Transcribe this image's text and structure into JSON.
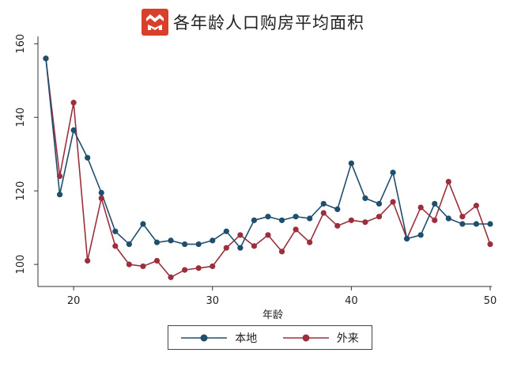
{
  "title": "各年龄人口购房平均面积",
  "colors": {
    "local": "#1f4e6e",
    "migrant": "#9b2f3e",
    "logo_bg": "#d9402b"
  },
  "chart_data": {
    "type": "line",
    "title": "各年龄人口购房平均面积",
    "xlabel": "年龄",
    "ylabel": "",
    "xlim": [
      18,
      50
    ],
    "ylim": [
      94,
      162
    ],
    "xticks": [
      "20",
      "30",
      "40",
      "50"
    ],
    "yticks": [
      "100",
      "120",
      "140",
      "160"
    ],
    "grid": false,
    "legend": "bottom",
    "x": [
      18,
      19,
      20,
      21,
      22,
      23,
      24,
      25,
      26,
      27,
      28,
      29,
      30,
      31,
      32,
      33,
      34,
      35,
      36,
      37,
      38,
      39,
      40,
      41,
      42,
      43,
      44,
      45,
      46,
      47,
      48,
      49,
      50
    ],
    "series": [
      {
        "name": "本地",
        "color": "#1f4e6e",
        "values": [
          156,
          119,
          136.5,
          129,
          119.5,
          109,
          105.5,
          111,
          106,
          106.5,
          105.5,
          105.5,
          106.5,
          109,
          104.5,
          112,
          113,
          112,
          113,
          112.5,
          116.5,
          115,
          127.5,
          118,
          116.5,
          125,
          107,
          108,
          116.5,
          112.5,
          111,
          111,
          111
        ]
      },
      {
        "name": "外来",
        "color": "#9b2f3e",
        "values": [
          156,
          124,
          144,
          101,
          118,
          105,
          100,
          99.5,
          101,
          96.5,
          98.5,
          99,
          99.5,
          104.5,
          108,
          105,
          108,
          103.5,
          109.5,
          106,
          114,
          110.5,
          112,
          111.5,
          113,
          117,
          107,
          115.5,
          112,
          122.5,
          113,
          116,
          105.5
        ]
      }
    ]
  }
}
